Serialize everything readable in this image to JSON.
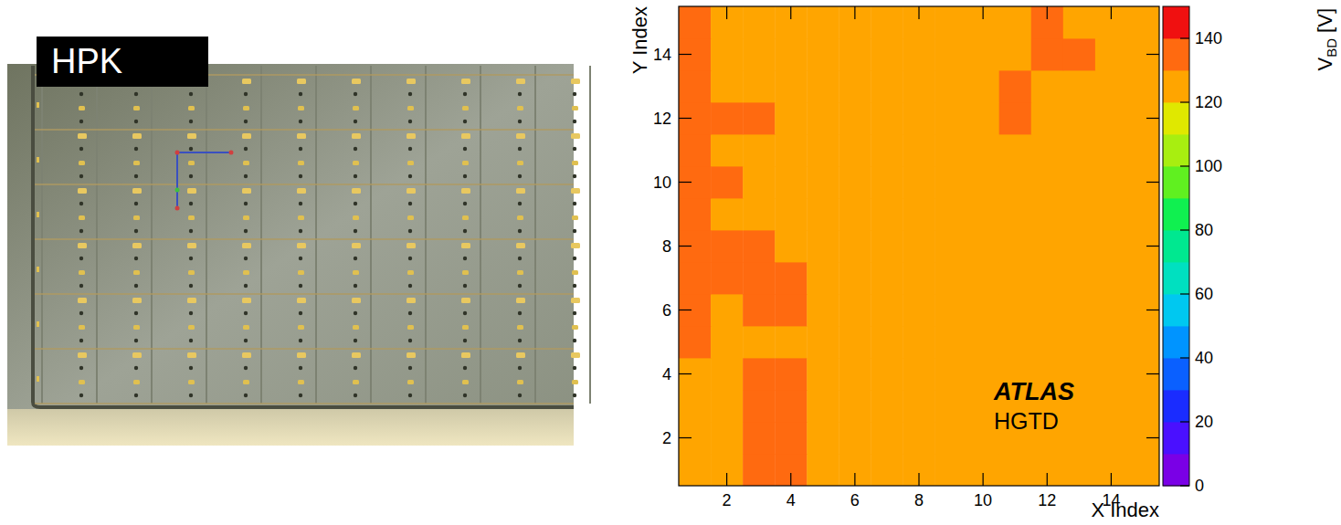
{
  "photo": {
    "label": "HPK"
  },
  "chart_data": {
    "type": "heatmap",
    "xlabel": "X Index",
    "ylabel": "Y Index",
    "xlim": [
      0.5,
      15.5
    ],
    "ylim": [
      0.5,
      15.5
    ],
    "xticks": [
      2,
      4,
      6,
      8,
      10,
      12,
      14
    ],
    "yticks": [
      2,
      4,
      6,
      8,
      10,
      12,
      14
    ],
    "x": [
      1,
      2,
      3,
      4,
      5,
      6,
      7,
      8,
      9,
      10,
      11,
      12,
      13,
      14,
      15
    ],
    "y": [
      1,
      2,
      3,
      4,
      5,
      6,
      7,
      8,
      9,
      10,
      11,
      12,
      13,
      14,
      15
    ],
    "z": [
      [
        125,
        125,
        135,
        135,
        125,
        125,
        125,
        125,
        125,
        125,
        125,
        125,
        125,
        125,
        125
      ],
      [
        125,
        125,
        135,
        135,
        125,
        125,
        125,
        125,
        125,
        125,
        125,
        125,
        125,
        125,
        125
      ],
      [
        125,
        125,
        135,
        135,
        125,
        125,
        125,
        125,
        125,
        125,
        125,
        125,
        125,
        125,
        125
      ],
      [
        125,
        125,
        135,
        135,
        125,
        125,
        125,
        125,
        125,
        125,
        125,
        125,
        125,
        125,
        125
      ],
      [
        135,
        125,
        125,
        125,
        125,
        125,
        125,
        125,
        125,
        125,
        125,
        125,
        125,
        125,
        125
      ],
      [
        135,
        125,
        135,
        135,
        125,
        125,
        125,
        125,
        125,
        125,
        125,
        125,
        125,
        125,
        125
      ],
      [
        135,
        135,
        135,
        135,
        125,
        125,
        125,
        125,
        125,
        125,
        125,
        125,
        125,
        125,
        125
      ],
      [
        135,
        135,
        135,
        125,
        125,
        125,
        125,
        125,
        125,
        125,
        125,
        125,
        125,
        125,
        125
      ],
      [
        135,
        125,
        125,
        125,
        125,
        125,
        125,
        125,
        125,
        125,
        125,
        125,
        125,
        125,
        125
      ],
      [
        135,
        135,
        125,
        125,
        125,
        125,
        125,
        125,
        125,
        125,
        125,
        125,
        125,
        125,
        125
      ],
      [
        135,
        125,
        125,
        125,
        125,
        125,
        125,
        125,
        125,
        125,
        125,
        125,
        125,
        125,
        125
      ],
      [
        135,
        135,
        135,
        125,
        125,
        125,
        125,
        125,
        125,
        125,
        135,
        125,
        125,
        125,
        125
      ],
      [
        135,
        125,
        125,
        125,
        125,
        125,
        125,
        125,
        125,
        125,
        135,
        125,
        125,
        125,
        125
      ],
      [
        135,
        125,
        125,
        125,
        125,
        125,
        125,
        125,
        125,
        125,
        125,
        135,
        135,
        125,
        125
      ],
      [
        135,
        125,
        125,
        125,
        125,
        125,
        125,
        125,
        125,
        125,
        125,
        135,
        125,
        125,
        125
      ]
    ],
    "colorbar": {
      "label": "V",
      "label_sub": "BD",
      "label_suffix": " [V]",
      "range": [
        0,
        150
      ],
      "ticks": [
        0,
        20,
        40,
        60,
        80,
        100,
        120,
        140
      ],
      "colors": [
        "#7a00e6",
        "#4a10ff",
        "#1a2cff",
        "#0a60ff",
        "#0094ff",
        "#00c8f0",
        "#00e0c0",
        "#00e890",
        "#10f050",
        "#60f020",
        "#a8ee10",
        "#e0e800",
        "#ffa500",
        "#ff6a10",
        "#f01010"
      ]
    },
    "annotations": [
      "ATLAS",
      "HGTD"
    ]
  }
}
